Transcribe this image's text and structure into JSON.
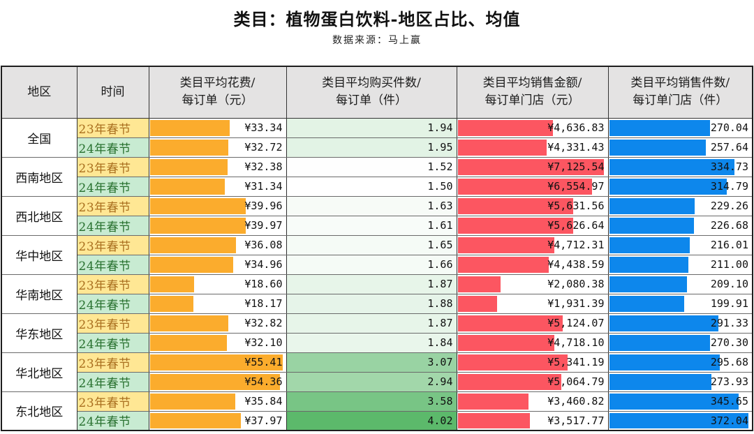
{
  "title": "类目：植物蛋白饮料-地区占比、均值",
  "subtitle": "数据来源：马上赢",
  "colors": {
    "bar_spend": "#FBAC2D",
    "bar_sales": "#FC5661",
    "bar_units": "#0D87EC",
    "items_scale_min": "#FFFFFF",
    "items_scale_max": "#5CB96B",
    "period_23_bg": "#FFE794",
    "period_23_text": "#A96F1F",
    "period_24_bg": "#C8EBD2",
    "period_24_text": "#27702E",
    "header_bg": "#E4E3E3"
  },
  "chart_data": {
    "type": "table",
    "title": "类目：植物蛋白饮料-地区占比、均值",
    "data_source": "数据来源：马上赢",
    "columns": [
      {
        "label": "地区",
        "line1": "地区"
      },
      {
        "label": "时间",
        "line1": "时间"
      },
      {
        "label": "类目平均花费/每订单（元）",
        "line1": "类目平均花费/",
        "line2": "每订单（元）"
      },
      {
        "label": "类目平均购买件数/每订单（件）",
        "line1": "类目平均购买件数/",
        "line2": "每订单（件）"
      },
      {
        "label": "类目平均销售金额/每订单门店（元）",
        "line1": "类目平均销售金额/",
        "line2": "每订单门店（元）"
      },
      {
        "label": "类目平均销售件数/每订单门店（件）",
        "line1": "类目平均销售件数/",
        "line2": "每订单门店（件）"
      }
    ],
    "periods": [
      "23年春节",
      "24年春节"
    ],
    "max": {
      "spend": 55.41,
      "items": 4.02,
      "sales": 7125.54,
      "units": 372.04
    },
    "min": {
      "items": 1.5
    },
    "rows": [
      {
        "region": "全国",
        "period": "23年春节",
        "spend": 33.34,
        "spend_label": "¥33.34",
        "items": 1.94,
        "items_label": "1.94",
        "sales": 4636.83,
        "sales_label": "¥4,636.83",
        "units": 270.04,
        "units_label": "270.04"
      },
      {
        "region": "全国",
        "period": "24年春节",
        "spend": 32.72,
        "spend_label": "¥32.72",
        "items": 1.95,
        "items_label": "1.95",
        "sales": 4331.43,
        "sales_label": "¥4,331.43",
        "units": 257.64,
        "units_label": "257.64"
      },
      {
        "region": "西南地区",
        "period": "23年春节",
        "spend": 32.38,
        "spend_label": "¥32.38",
        "items": 1.52,
        "items_label": "1.52",
        "sales": 7125.54,
        "sales_label": "¥7,125.54",
        "units": 334.73,
        "units_label": "334.73"
      },
      {
        "region": "西南地区",
        "period": "24年春节",
        "spend": 31.34,
        "spend_label": "¥31.34",
        "items": 1.5,
        "items_label": "1.50",
        "sales": 6554.97,
        "sales_label": "¥6,554.97",
        "units": 314.79,
        "units_label": "314.79"
      },
      {
        "region": "西北地区",
        "period": "23年春节",
        "spend": 39.96,
        "spend_label": "¥39.96",
        "items": 1.63,
        "items_label": "1.63",
        "sales": 5631.56,
        "sales_label": "¥5,631.56",
        "units": 229.26,
        "units_label": "229.26"
      },
      {
        "region": "西北地区",
        "period": "24年春节",
        "spend": 39.97,
        "spend_label": "¥39.97",
        "items": 1.61,
        "items_label": "1.61",
        "sales": 5626.64,
        "sales_label": "¥5,626.64",
        "units": 226.68,
        "units_label": "226.68"
      },
      {
        "region": "华中地区",
        "period": "23年春节",
        "spend": 36.08,
        "spend_label": "¥36.08",
        "items": 1.65,
        "items_label": "1.65",
        "sales": 4712.31,
        "sales_label": "¥4,712.31",
        "units": 216.01,
        "units_label": "216.01"
      },
      {
        "region": "华中地区",
        "period": "24年春节",
        "spend": 34.96,
        "spend_label": "¥34.96",
        "items": 1.66,
        "items_label": "1.66",
        "sales": 4438.59,
        "sales_label": "¥4,438.59",
        "units": 211.0,
        "units_label": "211.00"
      },
      {
        "region": "华南地区",
        "period": "23年春节",
        "spend": 18.6,
        "spend_label": "¥18.60",
        "items": 1.87,
        "items_label": "1.87",
        "sales": 2080.38,
        "sales_label": "¥2,080.38",
        "units": 209.1,
        "units_label": "209.10"
      },
      {
        "region": "华南地区",
        "period": "24年春节",
        "spend": 18.17,
        "spend_label": "¥18.17",
        "items": 1.88,
        "items_label": "1.88",
        "sales": 1931.39,
        "sales_label": "¥1,931.39",
        "units": 199.91,
        "units_label": "199.91"
      },
      {
        "region": "华东地区",
        "period": "23年春节",
        "spend": 32.82,
        "spend_label": "¥32.82",
        "items": 1.87,
        "items_label": "1.87",
        "sales": 5124.07,
        "sales_label": "¥5,124.07",
        "units": 291.33,
        "units_label": "291.33"
      },
      {
        "region": "华东地区",
        "period": "24年春节",
        "spend": 32.1,
        "spend_label": "¥32.10",
        "items": 1.84,
        "items_label": "1.84",
        "sales": 4718.1,
        "sales_label": "¥4,718.10",
        "units": 270.3,
        "units_label": "270.30"
      },
      {
        "region": "华北地区",
        "period": "23年春节",
        "spend": 55.41,
        "spend_label": "¥55.41",
        "items": 3.07,
        "items_label": "3.07",
        "sales": 5341.19,
        "sales_label": "¥5,341.19",
        "units": 295.68,
        "units_label": "295.68"
      },
      {
        "region": "华北地区",
        "period": "24年春节",
        "spend": 54.36,
        "spend_label": "¥54.36",
        "items": 2.94,
        "items_label": "2.94",
        "sales": 5064.79,
        "sales_label": "¥5,064.79",
        "units": 273.93,
        "units_label": "273.93"
      },
      {
        "region": "东北地区",
        "period": "23年春节",
        "spend": 35.84,
        "spend_label": "¥35.84",
        "items": 3.58,
        "items_label": "3.58",
        "sales": 3460.82,
        "sales_label": "¥3,460.82",
        "units": 345.65,
        "units_label": "345.65"
      },
      {
        "region": "东北地区",
        "period": "24年春节",
        "spend": 37.97,
        "spend_label": "¥37.97",
        "items": 4.02,
        "items_label": "4.02",
        "sales": 3517.77,
        "sales_label": "¥3,517.77",
        "units": 372.04,
        "units_label": "372.04"
      }
    ]
  }
}
